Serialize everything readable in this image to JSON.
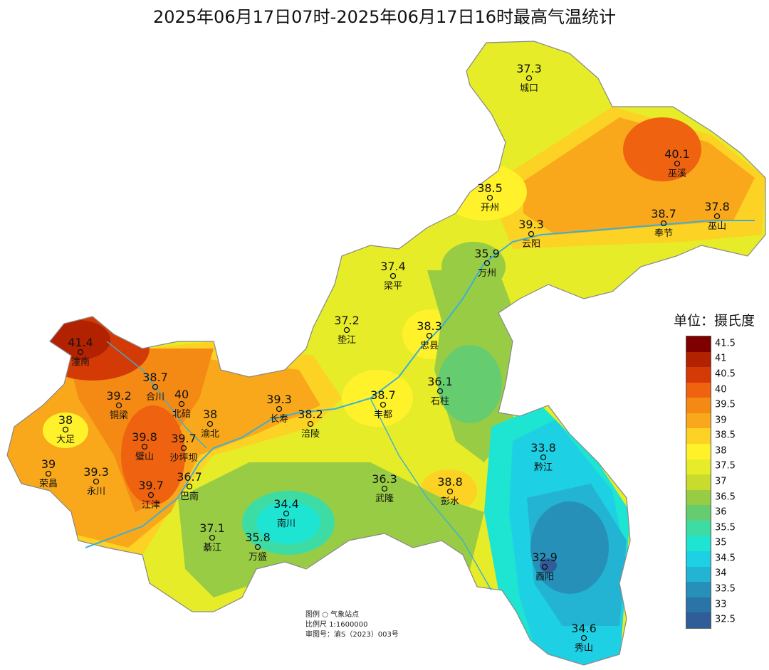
{
  "title": "2025年06月17日07时-2025年06月17日16时最高气温统计",
  "legend": {
    "unit_label": "单位：摄氏度",
    "levels": [
      {
        "label": "41.5",
        "color": "#7f0000"
      },
      {
        "label": "41",
        "color": "#b22200"
      },
      {
        "label": "40.5",
        "color": "#d43a06"
      },
      {
        "label": "40",
        "color": "#ee6210"
      },
      {
        "label": "39.5",
        "color": "#f48a14"
      },
      {
        "label": "39",
        "color": "#f8a81a"
      },
      {
        "label": "38.5",
        "color": "#fcd224"
      },
      {
        "label": "38",
        "color": "#fff22a"
      },
      {
        "label": "37.5",
        "color": "#e6ec28"
      },
      {
        "label": "37",
        "color": "#c8dc2e"
      },
      {
        "label": "36.5",
        "color": "#98cc44"
      },
      {
        "label": "36",
        "color": "#66cc70"
      },
      {
        "label": "35.5",
        "color": "#3cdca4"
      },
      {
        "label": "35",
        "color": "#1ee4d2"
      },
      {
        "label": "34.5",
        "color": "#1ed0e4"
      },
      {
        "label": "34",
        "color": "#22b4d2"
      },
      {
        "label": "33.5",
        "color": "#2690b8"
      },
      {
        "label": "33",
        "color": "#2a74a8"
      },
      {
        "label": "32.5",
        "color": "#305c98"
      }
    ]
  },
  "info": {
    "legend_label": "图例",
    "station_symbol": "○",
    "station_label": "气象站点",
    "scale_label": "比例尺",
    "scale_value": "1:1600000",
    "approval_label": "审图号：",
    "approval_value": "渝S（2023）003号"
  },
  "stations": [
    {
      "name": "城口",
      "value": "37.3"
    },
    {
      "name": "巫溪",
      "value": "40.1"
    },
    {
      "name": "开州",
      "value": "38.5"
    },
    {
      "name": "奉节",
      "value": "38.7"
    },
    {
      "name": "巫山",
      "value": "37.8"
    },
    {
      "name": "云阳",
      "value": "39.3"
    },
    {
      "name": "万州",
      "value": "35.9"
    },
    {
      "name": "梁平",
      "value": "37.4"
    },
    {
      "name": "垫江",
      "value": "37.2"
    },
    {
      "name": "忠县",
      "value": "38.3"
    },
    {
      "name": "潼南",
      "value": "41.4"
    },
    {
      "name": "合川",
      "value": "38.7"
    },
    {
      "name": "铜梁",
      "value": "39.2"
    },
    {
      "name": "北碚",
      "value": "40"
    },
    {
      "name": "渝北",
      "value": "38"
    },
    {
      "name": "长寿",
      "value": "39.3"
    },
    {
      "name": "涪陵",
      "value": "38.2"
    },
    {
      "name": "丰都",
      "value": "38.7"
    },
    {
      "name": "石柱",
      "value": "36.1"
    },
    {
      "name": "大足",
      "value": "38"
    },
    {
      "name": "璧山",
      "value": "39.8"
    },
    {
      "name": "沙坪坝",
      "value": "39.7"
    },
    {
      "name": "荣昌",
      "value": "39"
    },
    {
      "name": "永川",
      "value": "39.3"
    },
    {
      "name": "江津",
      "value": "39.7"
    },
    {
      "name": "巴南",
      "value": "36.7"
    },
    {
      "name": "武隆",
      "value": "36.3"
    },
    {
      "name": "彭水",
      "value": "38.8"
    },
    {
      "name": "黔江",
      "value": "33.8"
    },
    {
      "name": "南川",
      "value": "34.4"
    },
    {
      "name": "綦江",
      "value": "37.1"
    },
    {
      "name": "万盛",
      "value": "35.8"
    },
    {
      "name": "酉阳",
      "value": "32.9"
    },
    {
      "name": "秀山",
      "value": "34.6"
    }
  ]
}
